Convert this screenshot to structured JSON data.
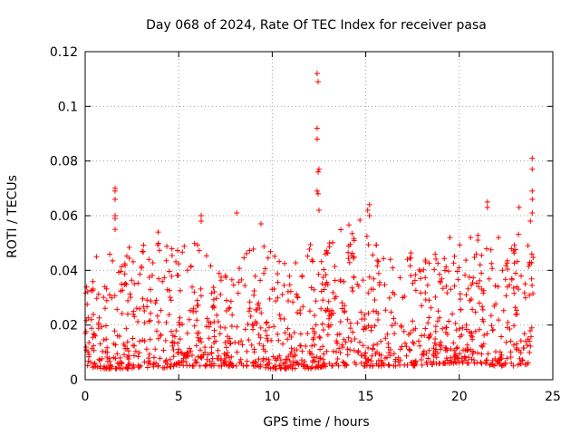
{
  "chart_data": {
    "type": "scatter",
    "title": "Day 068 of 2024, Rate Of TEC Index for receiver pasa",
    "xlabel": "GPS time / hours",
    "ylabel": "ROTI / TECUs",
    "xlim": [
      0,
      25
    ],
    "ylim": [
      0,
      0.12
    ],
    "xticks": [
      0,
      5,
      10,
      15,
      20,
      25
    ],
    "xtick_labels": [
      "0",
      "5",
      "10",
      "15",
      "20",
      "25"
    ],
    "yticks": [
      0,
      0.02,
      0.04,
      0.06,
      0.08,
      0.1,
      0.12
    ],
    "ytick_labels": [
      "0",
      "0.02",
      "0.04",
      "0.06",
      "0.08",
      "0.1",
      "0.12"
    ],
    "grid": true,
    "marker": "plus",
    "series": [
      {
        "name": "ROTI",
        "color": "#ff0000",
        "peaks": [
          {
            "x": 1.6,
            "y": 0.07
          },
          {
            "x": 1.6,
            "y": 0.069
          },
          {
            "x": 1.6,
            "y": 0.066
          },
          {
            "x": 1.6,
            "y": 0.06
          },
          {
            "x": 1.6,
            "y": 0.059
          },
          {
            "x": 1.6,
            "y": 0.055
          },
          {
            "x": 6.2,
            "y": 0.06
          },
          {
            "x": 6.2,
            "y": 0.058
          },
          {
            "x": 8.1,
            "y": 0.061
          },
          {
            "x": 9.4,
            "y": 0.057
          },
          {
            "x": 12.4,
            "y": 0.112
          },
          {
            "x": 12.45,
            "y": 0.109
          },
          {
            "x": 12.4,
            "y": 0.092
          },
          {
            "x": 12.4,
            "y": 0.088
          },
          {
            "x": 12.5,
            "y": 0.077
          },
          {
            "x": 12.45,
            "y": 0.076
          },
          {
            "x": 12.4,
            "y": 0.069
          },
          {
            "x": 12.45,
            "y": 0.068
          },
          {
            "x": 12.5,
            "y": 0.062
          },
          {
            "x": 15.2,
            "y": 0.064
          },
          {
            "x": 15.1,
            "y": 0.062
          },
          {
            "x": 15.2,
            "y": 0.06
          },
          {
            "x": 21.5,
            "y": 0.065
          },
          {
            "x": 21.5,
            "y": 0.063
          },
          {
            "x": 23.2,
            "y": 0.063
          },
          {
            "x": 23.9,
            "y": 0.081
          },
          {
            "x": 23.9,
            "y": 0.077
          },
          {
            "x": 23.9,
            "y": 0.069
          },
          {
            "x": 23.9,
            "y": 0.066
          },
          {
            "x": 23.9,
            "y": 0.061
          },
          {
            "x": 23.8,
            "y": 0.058
          },
          {
            "x": 22.1,
            "y": 0.052
          },
          {
            "x": 20.6,
            "y": 0.052
          },
          {
            "x": 19.5,
            "y": 0.052
          },
          {
            "x": 0.6,
            "y": 0.045
          },
          {
            "x": 3.9,
            "y": 0.054
          }
        ],
        "profile_hours": [
          0,
          1,
          2,
          3,
          4,
          5,
          6,
          7,
          8,
          9,
          10,
          11,
          12,
          13,
          14,
          15,
          16,
          17,
          18,
          19,
          20,
          21,
          22,
          23,
          24
        ],
        "typical_upper": [
          0.035,
          0.045,
          0.048,
          0.05,
          0.05,
          0.048,
          0.052,
          0.04,
          0.042,
          0.05,
          0.05,
          0.04,
          0.052,
          0.05,
          0.058,
          0.06,
          0.045,
          0.046,
          0.048,
          0.048,
          0.05,
          0.055,
          0.05,
          0.055,
          0.05
        ],
        "typical_lower": [
          0.005,
          0.004,
          0.004,
          0.004,
          0.004,
          0.005,
          0.005,
          0.005,
          0.005,
          0.005,
          0.004,
          0.004,
          0.004,
          0.005,
          0.005,
          0.005,
          0.005,
          0.005,
          0.005,
          0.006,
          0.006,
          0.006,
          0.005,
          0.005,
          0.006
        ]
      }
    ]
  }
}
